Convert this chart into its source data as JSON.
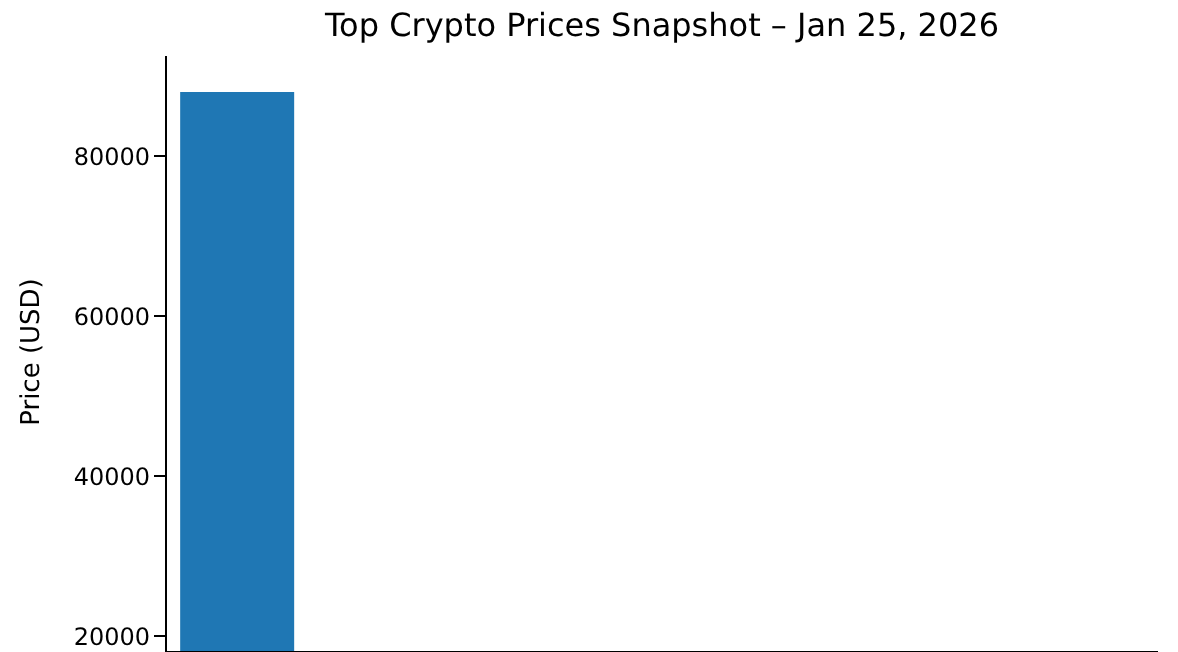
{
  "chart_data": {
    "type": "bar",
    "title": "Top Crypto Prices Snapshot – Jan 25, 2026",
    "ylabel": "Price (USD)",
    "categories": [
      null,
      null,
      null,
      null,
      null,
      null,
      null
    ],
    "values": [
      88000,
      null,
      null,
      null,
      null,
      null,
      null
    ],
    "color": "#1f77b4",
    "ylim": [
      18000,
      92500
    ],
    "yticks": [
      20000,
      40000,
      60000,
      80000
    ],
    "tick_labels": "y",
    "grid": false,
    "legend": false
  }
}
